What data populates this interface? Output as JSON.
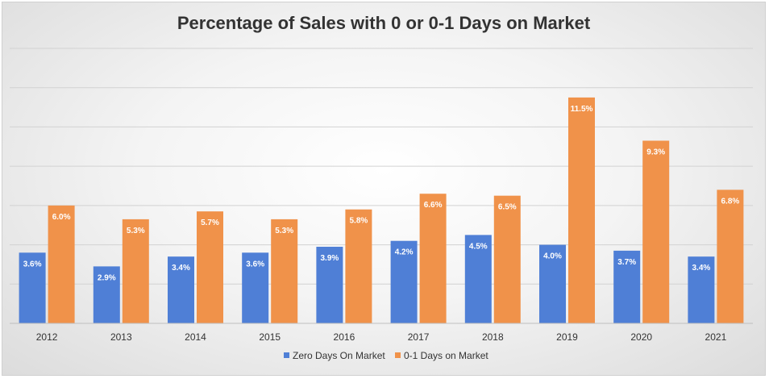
{
  "chart_data": {
    "type": "bar",
    "title": "Percentage of Sales with 0 or 0-1 Days on Market",
    "xlabel": "",
    "ylabel": "",
    "ylim": [
      0,
      14
    ],
    "grid": true,
    "legend_position": "bottom",
    "categories": [
      "2012",
      "2013",
      "2014",
      "2015",
      "2016",
      "2017",
      "2018",
      "2019",
      "2020",
      "2021"
    ],
    "series": [
      {
        "name": "Zero Days On Market",
        "color": "#4f7fd6",
        "values": [
          3.6,
          2.9,
          3.4,
          3.6,
          3.9,
          4.2,
          4.5,
          4.0,
          3.7,
          3.4
        ],
        "labels": [
          "3.6%",
          "2.9%",
          "3.4%",
          "3.6%",
          "3.9%",
          "4.2%",
          "4.5%",
          "4.0%",
          "3.7%",
          "3.4%"
        ]
      },
      {
        "name": "0-1 Days on Market",
        "color": "#f0924a",
        "values": [
          6.0,
          5.3,
          5.7,
          5.3,
          5.8,
          6.6,
          6.5,
          11.5,
          9.3,
          6.8
        ],
        "labels": [
          "6.0%",
          "5.3%",
          "5.7%",
          "5.3%",
          "5.8%",
          "6.6%",
          "6.5%",
          "11.5%",
          "9.3%",
          "6.8%"
        ]
      }
    ]
  }
}
